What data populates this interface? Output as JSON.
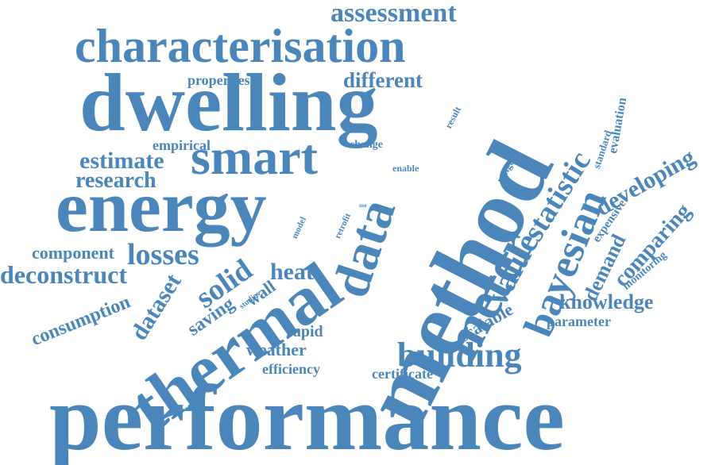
{
  "accent_color": "#4a86ba",
  "background_color": "#ffffff",
  "words": [
    {
      "id": "performance",
      "text": "performance"
    },
    {
      "id": "method",
      "text": "method"
    },
    {
      "id": "dwelling",
      "text": "dwelling"
    },
    {
      "id": "energy",
      "text": "energy"
    },
    {
      "id": "thermal",
      "text": "thermal"
    },
    {
      "id": "characterisation",
      "text": "characterisation"
    },
    {
      "id": "smart",
      "text": "smart"
    },
    {
      "id": "meter",
      "text": "meter"
    },
    {
      "id": "data",
      "text": "data"
    },
    {
      "id": "bayesian",
      "text": "bayesian"
    },
    {
      "id": "building",
      "text": "building"
    },
    {
      "id": "assessment",
      "text": "assessment"
    },
    {
      "id": "statistic",
      "text": "statistic"
    },
    {
      "id": "value",
      "text": "value"
    },
    {
      "id": "different",
      "text": "different"
    },
    {
      "id": "estimate",
      "text": "estimate"
    },
    {
      "id": "research",
      "text": "research"
    },
    {
      "id": "developing",
      "text": "developing"
    },
    {
      "id": "comparing",
      "text": "comparing"
    },
    {
      "id": "demand",
      "text": "demand"
    },
    {
      "id": "knowledge",
      "text": "knowledge"
    },
    {
      "id": "deconstruct",
      "text": "deconstruct"
    },
    {
      "id": "losses",
      "text": "losses"
    },
    {
      "id": "solid",
      "text": "solid"
    },
    {
      "id": "heat",
      "text": "heat"
    },
    {
      "id": "component",
      "text": "component"
    },
    {
      "id": "consumption",
      "text": "consumption"
    },
    {
      "id": "dataset",
      "text": "dataset"
    },
    {
      "id": "saving",
      "text": "saving"
    },
    {
      "id": "wall",
      "text": "wall"
    },
    {
      "id": "weather",
      "text": "weather"
    },
    {
      "id": "efficiency",
      "text": "efficiency"
    },
    {
      "id": "rapid",
      "text": "rapid"
    },
    {
      "id": "certificate",
      "text": "certificate"
    },
    {
      "id": "scalable",
      "text": "scalable"
    },
    {
      "id": "parameter",
      "text": "parameter"
    },
    {
      "id": "properties",
      "text": "properties"
    },
    {
      "id": "empirical",
      "text": "empirical"
    },
    {
      "id": "change",
      "text": "change"
    },
    {
      "id": "enable",
      "text": "enable"
    },
    {
      "id": "result",
      "text": "result"
    },
    {
      "id": "range",
      "text": "range"
    },
    {
      "id": "standard",
      "text": "standard"
    },
    {
      "id": "evaluation",
      "text": "evaluation"
    },
    {
      "id": "expensive",
      "text": "expensive"
    },
    {
      "id": "monitoring",
      "text": "monitoring"
    },
    {
      "id": "model",
      "text": "model"
    },
    {
      "id": "retrofit",
      "text": "retrofit"
    },
    {
      "id": "use",
      "text": "use"
    },
    {
      "id": "site",
      "text": "site"
    },
    {
      "id": "studies",
      "text": "studies"
    }
  ]
}
